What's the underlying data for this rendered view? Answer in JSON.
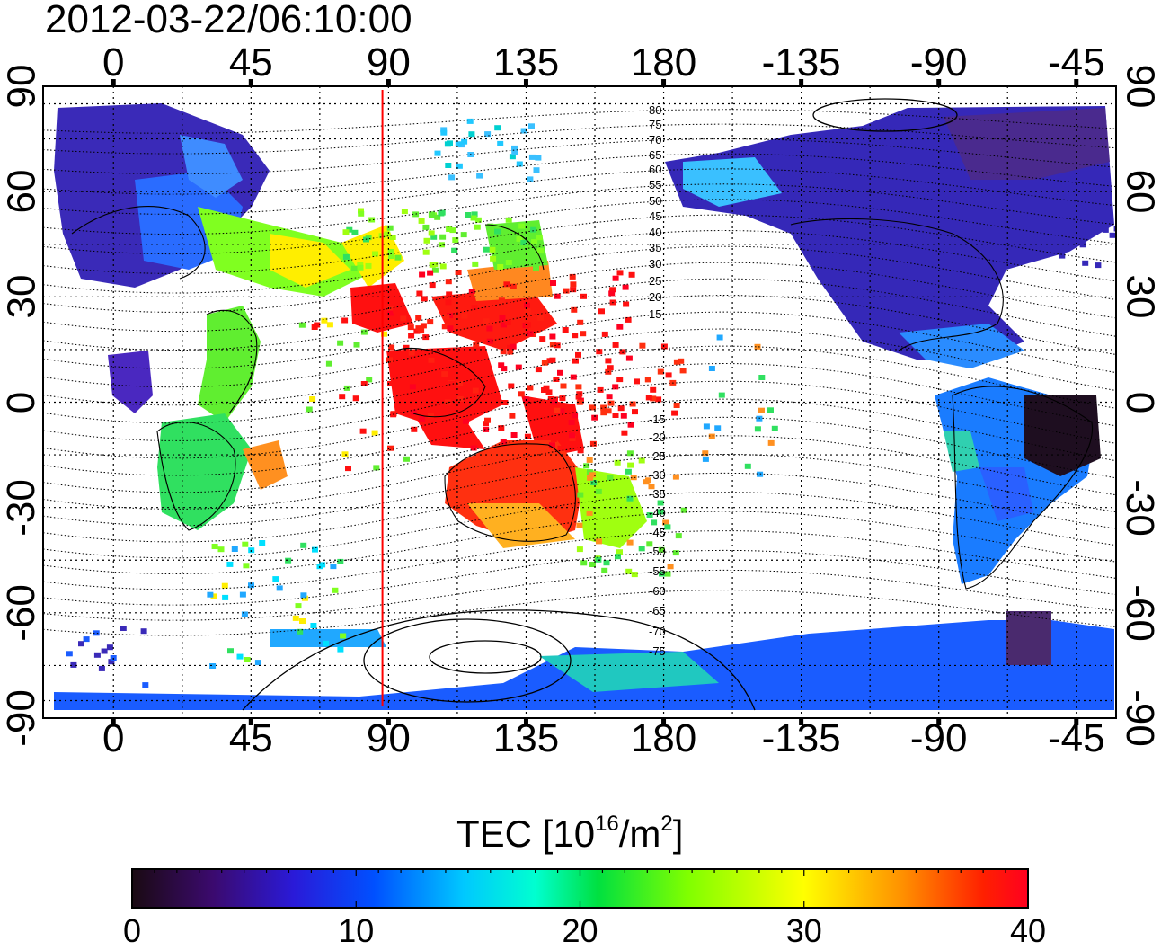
{
  "timestamp": "2012-03-22/06:10:00",
  "map": {
    "lon_ticks_top": [
      "0",
      "45",
      "90",
      "135",
      "180",
      "-135",
      "-90",
      "-45"
    ],
    "lon_ticks_bottom": [
      "0",
      "45",
      "90",
      "135",
      "180",
      "-135",
      "-90",
      "-45"
    ],
    "lat_ticks_left": [
      "90",
      "60",
      "30",
      "0",
      "-30",
      "-60",
      "-90"
    ],
    "lat_ticks_right": [
      "90",
      "60",
      "30",
      "0",
      "-30",
      "-60",
      "-90"
    ],
    "lon_tick_values": [
      0,
      45,
      90,
      135,
      180,
      225,
      270,
      315
    ],
    "lat_tick_values": [
      90,
      60,
      30,
      0,
      -30,
      -60,
      -90
    ],
    "lon_range": [
      -23,
      328
    ],
    "lat_range": [
      -90,
      90
    ],
    "marker_longitude": 88,
    "marker_color": "#ff0000",
    "contour_labels": [
      "80",
      "75",
      "70",
      "65",
      "60",
      "55",
      "50",
      "45",
      "40",
      "35",
      "30",
      "25",
      "20",
      "15",
      "-15",
      "-20",
      "-25",
      "-30",
      "-35",
      "-40",
      "-45",
      "-50",
      "-55",
      "-60",
      "-65",
      "-70",
      "-75"
    ],
    "contour_label_lats": [
      80,
      75,
      70,
      65,
      60,
      55,
      50,
      45,
      40,
      35,
      30,
      25,
      20,
      15,
      -15,
      -20,
      -25,
      -30,
      -35,
      -40,
      -45,
      -50,
      -55,
      -60,
      -65,
      -70,
      -75
    ]
  },
  "colorbar": {
    "title": "TEC  [10",
    "title_exp": "16",
    "title_unit": "/m",
    "title_unit_exp": "2",
    "title_close": "]",
    "ticks": [
      "0",
      "10",
      "20",
      "30",
      "40"
    ],
    "tick_values": [
      0,
      10,
      20,
      30,
      40
    ],
    "range": [
      0,
      40
    ],
    "colors": [
      "#1a0a12",
      "#3b0a6e",
      "#2a1ad8",
      "#0050ff",
      "#00c8ff",
      "#00ffd0",
      "#00e040",
      "#80ff00",
      "#ffff00",
      "#ff9000",
      "#ff2000",
      "#ff0020"
    ]
  }
}
